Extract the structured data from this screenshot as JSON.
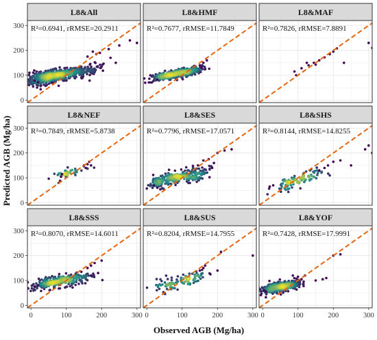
{
  "chart_data": {
    "type": "scatter",
    "xlabel": "Observed AGB (Mg/ha)",
    "ylabel": "Predicted AGB (Mg/ha)",
    "xlim": [
      -10,
      310
    ],
    "ylim": [
      -10,
      320
    ],
    "x_ticks": [
      0,
      100,
      200,
      300
    ],
    "y_ticks": [
      0,
      100,
      200,
      300
    ],
    "grid": true,
    "reference_line": "1:1",
    "colors": {
      "reference_line": "#e4650c",
      "panel_border": "#333333",
      "strip_fill": "#d9d9d9",
      "point_low": "#440154",
      "point_mid": "#21918c",
      "point_high": "#fde725",
      "grid": "#e8e8e8"
    },
    "panels": [
      {
        "title": "L8&All",
        "stats": "R²=0.6941, rRMSE=20.2911",
        "clusters": [
          [
            25,
            90,
            25,
            14,
            160
          ],
          [
            50,
            92,
            22,
            12,
            200
          ],
          [
            90,
            102,
            20,
            10,
            180
          ],
          [
            130,
            110,
            25,
            12,
            110
          ],
          [
            170,
            120,
            22,
            14,
            45
          ]
        ],
        "outliers": [
          [
            175,
            195
          ],
          [
            195,
            190
          ],
          [
            220,
            205
          ],
          [
            250,
            220
          ],
          [
            280,
            240
          ],
          [
            300,
            230
          ],
          [
            225,
            170
          ],
          [
            240,
            150
          ],
          [
            60,
            70
          ],
          [
            20,
            72
          ],
          [
            10,
            78
          ],
          [
            160,
            175
          ],
          [
            185,
            185
          ]
        ]
      },
      {
        "title": "L8&HMF",
        "stats": "R²=0.7677, rRMSE=11.7849",
        "clusters": [
          [
            40,
            95,
            18,
            8,
            110
          ],
          [
            75,
            103,
            18,
            8,
            140
          ],
          [
            110,
            112,
            18,
            8,
            120
          ],
          [
            140,
            122,
            14,
            8,
            60
          ]
        ],
        "outliers": [
          [
            150,
            140
          ],
          [
            160,
            150
          ],
          [
            170,
            160
          ],
          [
            155,
            130
          ],
          [
            30,
            82
          ]
        ]
      },
      {
        "title": "L8&MAF",
        "stats": "R²=0.7826, rRMSE=7.8891",
        "clusters": [],
        "outliers": [
          [
            90,
            115
          ],
          [
            110,
            128
          ],
          [
            130,
            140
          ],
          [
            145,
            150
          ],
          [
            160,
            160
          ],
          [
            175,
            172
          ],
          [
            190,
            185
          ],
          [
            200,
            195
          ],
          [
            210,
            208
          ],
          [
            150,
            143
          ],
          [
            125,
            150
          ],
          [
            230,
            150
          ],
          [
            300,
            230
          ],
          [
            310,
            210
          ],
          [
            95,
            100
          ]
        ]
      },
      {
        "title": "L8&NEF",
        "stats": "R²=0.7849, rRMSE=5.8738",
        "clusters": [
          [
            110,
            120,
            25,
            10,
            40
          ]
        ],
        "outliers": [
          [
            85,
            105
          ],
          [
            88,
            115
          ],
          [
            150,
            150
          ],
          [
            160,
            155
          ],
          [
            165,
            165
          ],
          [
            155,
            140
          ],
          [
            170,
            150
          ]
        ]
      },
      {
        "title": "L8&SES",
        "stats": "R²=0.7796, rRMSE=17.0571",
        "clusters": [
          [
            40,
            88,
            20,
            14,
            90
          ],
          [
            90,
            100,
            25,
            12,
            120
          ],
          [
            140,
            115,
            20,
            14,
            80
          ]
        ],
        "outliers": [
          [
            160,
            170
          ],
          [
            175,
            175
          ],
          [
            185,
            140
          ],
          [
            190,
            160
          ],
          [
            200,
            200
          ],
          [
            220,
            210
          ],
          [
            240,
            215
          ],
          [
            30,
            60
          ],
          [
            20,
            70
          ],
          [
            145,
            150
          ]
        ]
      },
      {
        "title": "L8&SHS",
        "stats": "R²=0.8144, rRMSE=14.8255",
        "clusters": [
          [
            70,
            75,
            22,
            14,
            50
          ],
          [
            120,
            100,
            25,
            14,
            50
          ]
        ],
        "outliers": [
          [
            20,
            65
          ],
          [
            30,
            70
          ],
          [
            160,
            130
          ],
          [
            175,
            140
          ],
          [
            185,
            150
          ],
          [
            200,
            165
          ],
          [
            220,
            170
          ],
          [
            250,
            150
          ],
          [
            290,
            215
          ],
          [
            300,
            230
          ],
          [
            310,
            200
          ]
        ]
      },
      {
        "title": "L8&SSS",
        "stats": "R²=0.8070, rRMSE=14.6011",
        "clusters": [
          [
            40,
            88,
            20,
            12,
            100
          ],
          [
            90,
            100,
            22,
            12,
            130
          ],
          [
            140,
            110,
            22,
            14,
            70
          ]
        ],
        "outliers": [
          [
            160,
            150
          ],
          [
            170,
            160
          ],
          [
            180,
            170
          ],
          [
            200,
            180
          ],
          [
            170,
            120
          ],
          [
            190,
            130
          ],
          [
            10,
            75
          ],
          [
            20,
            80
          ]
        ]
      },
      {
        "title": "L8&SUS",
        "stats": "R²=0.8204, rRMSE=14.7955",
        "clusters": [
          [
            70,
            90,
            30,
            14,
            60
          ],
          [
            125,
            110,
            25,
            14,
            40
          ]
        ],
        "outliers": [
          [
            150,
            140
          ],
          [
            160,
            150
          ],
          [
            165,
            160
          ],
          [
            180,
            125
          ],
          [
            200,
            140
          ],
          [
            210,
            215
          ],
          [
            300,
            200
          ]
        ]
      },
      {
        "title": "L8&YOF",
        "stats": "R²=0.7428, rRMSE=17.9991",
        "clusters": [
          [
            25,
            68,
            15,
            10,
            150
          ],
          [
            55,
            75,
            18,
            10,
            170
          ],
          [
            80,
            82,
            15,
            10,
            90
          ]
        ],
        "outliers": [
          [
            100,
            115
          ],
          [
            110,
            105
          ],
          [
            120,
            120
          ],
          [
            150,
            100
          ],
          [
            170,
            105
          ],
          [
            180,
            110
          ],
          [
            200,
            200
          ],
          [
            220,
            205
          ],
          [
            10,
            55
          ],
          [
            5,
            60
          ]
        ]
      }
    ]
  }
}
